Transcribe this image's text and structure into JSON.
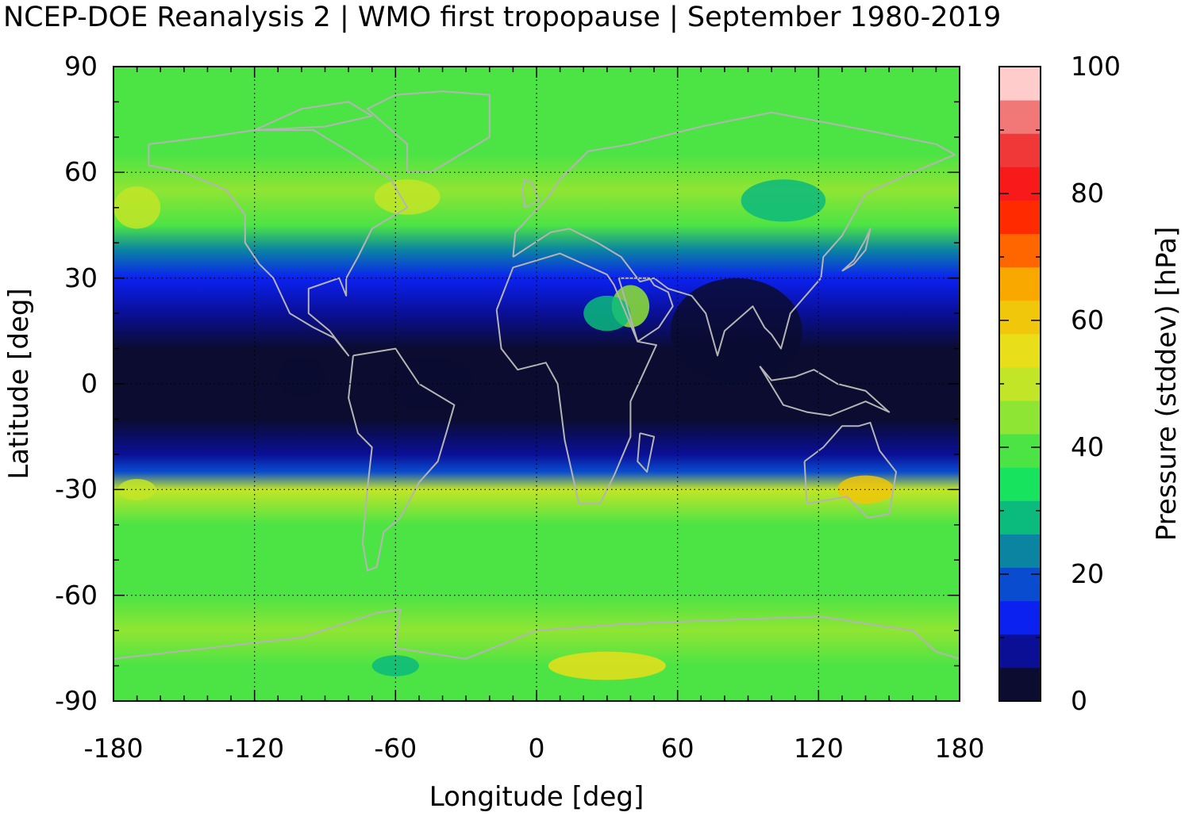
{
  "title": "NCEP-DOE Reanalysis 2 | WMO first tropopause | September 1980-2019",
  "map": {
    "xlabel": "Longitude [deg]",
    "ylabel": "Latitude [deg]",
    "xlim": [
      -180,
      180
    ],
    "ylim": [
      -90,
      90
    ],
    "x_ticks": [
      "-180",
      "-120",
      "-60",
      "0",
      "60",
      "120",
      "180"
    ],
    "y_ticks": [
      "90",
      "60",
      "30",
      "0",
      "-30",
      "-60",
      "-90"
    ],
    "grid": "dotted",
    "coastline_color": "#b4b4b4"
  },
  "colorbar": {
    "label": "Pressure (stddev) [hPa]",
    "range": [
      0,
      100
    ],
    "ticks": [
      "0",
      "20",
      "40",
      "60",
      "80",
      "100"
    ],
    "colors": [
      "#0b0c30",
      "#0a0f96",
      "#0b21f0",
      "#0a4ccf",
      "#0b84a2",
      "#0bba7d",
      "#17e35e",
      "#4ce445",
      "#8fe533",
      "#c3e527",
      "#e8df1a",
      "#f0c70a",
      "#f9a800",
      "#ff6600",
      "#ff2a00",
      "#f81a1a",
      "#f03838",
      "#f27878",
      "#ffcccc"
    ]
  },
  "chart_data": {
    "type": "heatmap",
    "quantity": "Pressure (stddev) [hPa]",
    "latitude_profile": [
      {
        "lat": 80,
        "value": 38
      },
      {
        "lat": 65,
        "value": 38
      },
      {
        "lat": 55,
        "value": 46
      },
      {
        "lat": 45,
        "value": 42
      },
      {
        "lat": 38,
        "value": 24
      },
      {
        "lat": 30,
        "value": 11
      },
      {
        "lat": 20,
        "value": 8
      },
      {
        "lat": 10,
        "value": 4
      },
      {
        "lat": 0,
        "value": 4
      },
      {
        "lat": -10,
        "value": 5
      },
      {
        "lat": -20,
        "value": 9
      },
      {
        "lat": -25,
        "value": 18
      },
      {
        "lat": -30,
        "value": 48
      },
      {
        "lat": -40,
        "value": 42
      },
      {
        "lat": -50,
        "value": 40
      },
      {
        "lat": -60,
        "value": 42
      },
      {
        "lat": -70,
        "value": 44
      },
      {
        "lat": -80,
        "value": 42
      },
      {
        "lat": -88,
        "value": 38
      }
    ]
  }
}
